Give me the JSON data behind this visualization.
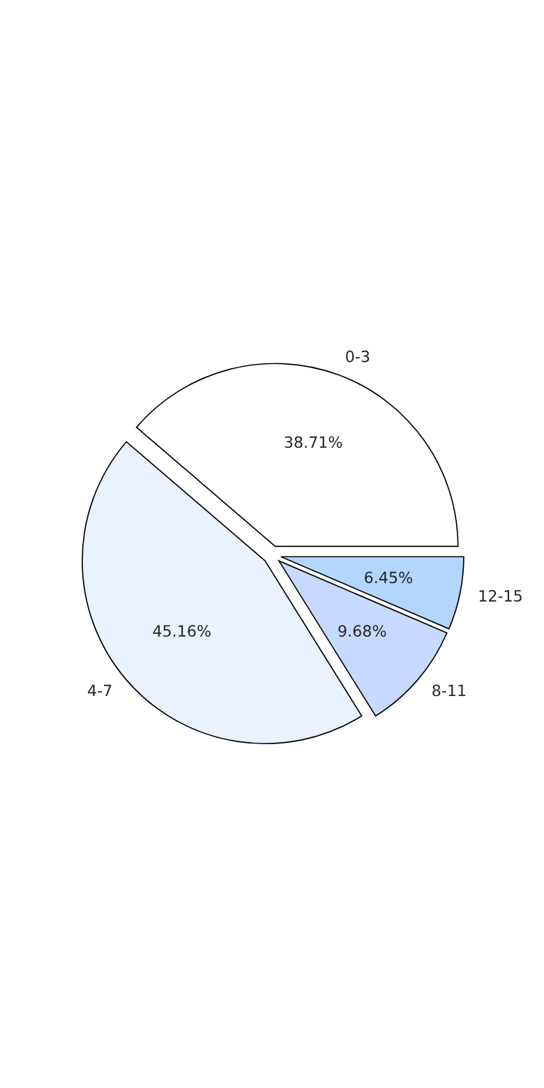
{
  "chart_data": {
    "type": "pie",
    "categories": [
      "0-3",
      "4-7",
      "8-11",
      "12-15"
    ],
    "values": [
      38.71,
      45.16,
      9.68,
      6.45
    ],
    "value_labels": [
      "38.71%",
      "45.16%",
      "9.68%",
      "6.45%"
    ],
    "colors": [
      "#ffffff",
      "#eaf1ff",
      "#c6d9ff",
      "#b3d6ff"
    ]
  }
}
